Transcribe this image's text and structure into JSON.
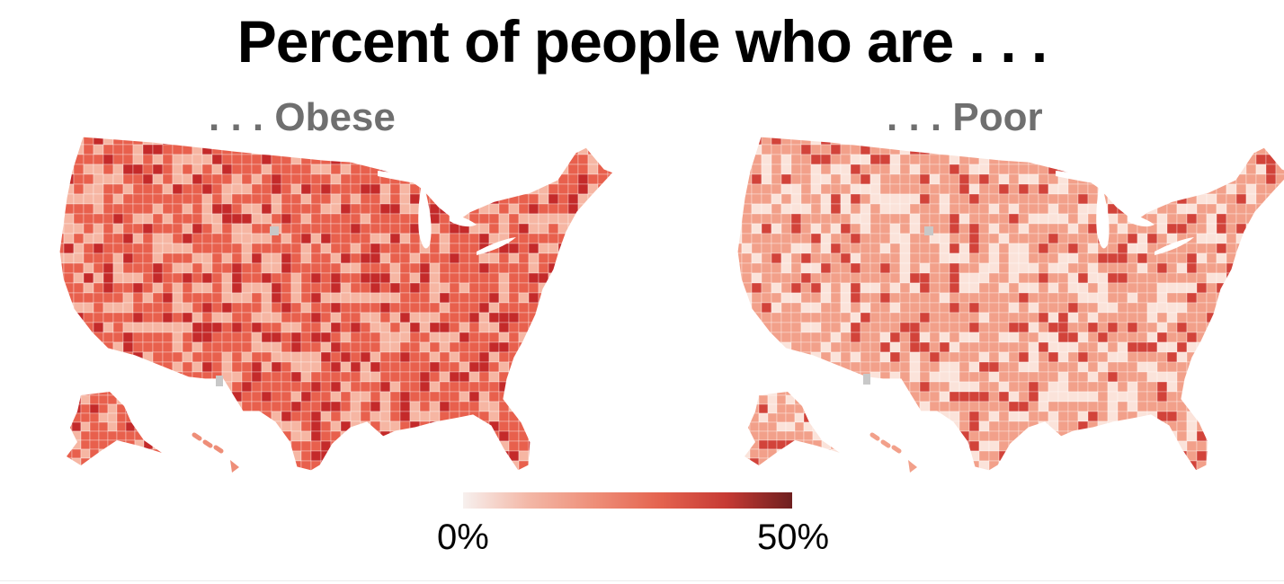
{
  "title": "Percent of people who are . . .",
  "maps": [
    {
      "subtitle": ". . . Obese",
      "base_color": "#e8604d",
      "hot_color": "#c42a2a",
      "light_color": "#f6b6a3"
    },
    {
      "subtitle": ". . . Poor",
      "base_color": "#f2a08a",
      "hot_color": "#d2433a",
      "light_color": "#fbe3da"
    }
  ],
  "legend": {
    "min_label": "0%",
    "max_label": "50%",
    "colors": [
      "#f7f0ee",
      "#f3b7a6",
      "#ee8e78",
      "#e4634f",
      "#c63a34",
      "#6e1f1f"
    ]
  },
  "no_data_color": "#c8c8c8"
}
